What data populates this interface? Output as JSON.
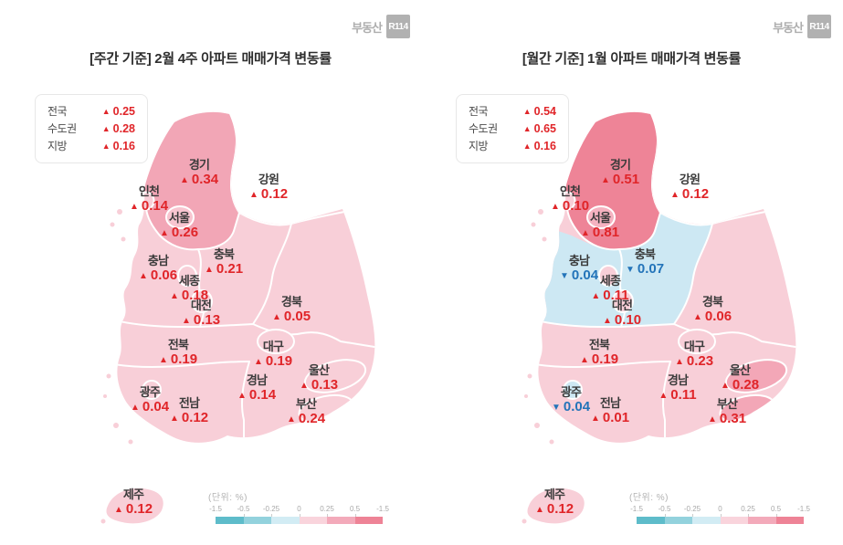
{
  "brand": {
    "name": "부동산",
    "badge": "R114"
  },
  "scale": {
    "unit": "(단위: %)",
    "ticks": [
      "-1.5",
      "-0.5",
      "-0.25",
      "0",
      "0.25",
      "0.5",
      "-1.5"
    ],
    "colors": [
      "#5EBCCA",
      "#93D2DD",
      "#D2ECF4",
      "#F9D4DC",
      "#F3AABA",
      "#EE8396"
    ]
  },
  "colors": {
    "up_red": "#E02529",
    "down_blue": "#2374B9",
    "base_pink": "#F8CFD8",
    "gyeonggi_weekly": "#F2A6B6",
    "gyeonggi_monthly": "#EE8497",
    "cool_blue_region": "#CDE8F3",
    "logo_gray": "#B1B1B1"
  },
  "chart_data": [
    {
      "type": "heatmap",
      "map": "south-korea-provinces-choropleth",
      "title": "[주간 기준] 2월 4주 아파트 매매가격 변동률",
      "unit": "%",
      "legend_position": "bottom-right",
      "scale_ticks": [
        "-1.5",
        "-0.5",
        "-0.25",
        "0",
        "0.25",
        "0.5",
        "-1.5"
      ],
      "summary": [
        {
          "label": "전국",
          "trend": "up",
          "marker": "▲",
          "value": "0.25"
        },
        {
          "label": "수도권",
          "trend": "up",
          "marker": "▲",
          "value": "0.28"
        },
        {
          "label": "지방",
          "trend": "up",
          "marker": "▲",
          "value": "0.16"
        }
      ],
      "regions": [
        {
          "name": "경기",
          "trend": "up",
          "marker": "▲",
          "value": "0.34"
        },
        {
          "name": "인천",
          "trend": "up",
          "marker": "▲",
          "value": "0.14"
        },
        {
          "name": "서울",
          "trend": "up",
          "marker": "▲",
          "value": "0.26"
        },
        {
          "name": "강원",
          "trend": "up",
          "marker": "▲",
          "value": "0.12"
        },
        {
          "name": "충남",
          "trend": "up",
          "marker": "▲",
          "value": "0.06"
        },
        {
          "name": "충북",
          "trend": "up",
          "marker": "▲",
          "value": "0.21"
        },
        {
          "name": "세종",
          "trend": "up",
          "marker": "▲",
          "value": "0.18"
        },
        {
          "name": "대전",
          "trend": "up",
          "marker": "▲",
          "value": "0.13"
        },
        {
          "name": "경북",
          "trend": "up",
          "marker": "▲",
          "value": "0.05"
        },
        {
          "name": "전북",
          "trend": "up",
          "marker": "▲",
          "value": "0.19"
        },
        {
          "name": "대구",
          "trend": "up",
          "marker": "▲",
          "value": "0.19"
        },
        {
          "name": "경남",
          "trend": "up",
          "marker": "▲",
          "value": "0.14"
        },
        {
          "name": "울산",
          "trend": "up",
          "marker": "▲",
          "value": "0.13"
        },
        {
          "name": "광주",
          "trend": "up",
          "marker": "▲",
          "value": "0.04"
        },
        {
          "name": "전남",
          "trend": "up",
          "marker": "▲",
          "value": "0.12"
        },
        {
          "name": "부산",
          "trend": "up",
          "marker": "▲",
          "value": "0.24"
        },
        {
          "name": "제주",
          "trend": "up",
          "marker": "▲",
          "value": "0.12"
        }
      ]
    },
    {
      "type": "heatmap",
      "map": "south-korea-provinces-choropleth",
      "title": "[월간 기준] 1월 아파트 매매가격 변동률",
      "unit": "%",
      "legend_position": "bottom-right",
      "scale_ticks": [
        "-1.5",
        "-0.5",
        "-0.25",
        "0",
        "0.25",
        "0.5",
        "-1.5"
      ],
      "summary": [
        {
          "label": "전국",
          "trend": "up",
          "marker": "▲",
          "value": "0.54"
        },
        {
          "label": "수도권",
          "trend": "up",
          "marker": "▲",
          "value": "0.65"
        },
        {
          "label": "지방",
          "trend": "up",
          "marker": "▲",
          "value": "0.16"
        }
      ],
      "regions": [
        {
          "name": "경기",
          "trend": "up",
          "marker": "▲",
          "value": "0.51"
        },
        {
          "name": "인천",
          "trend": "up",
          "marker": "▲",
          "value": "0.10"
        },
        {
          "name": "서울",
          "trend": "up",
          "marker": "▲",
          "value": "0.81"
        },
        {
          "name": "강원",
          "trend": "up",
          "marker": "▲",
          "value": "0.12"
        },
        {
          "name": "충남",
          "trend": "down",
          "marker": "▼",
          "value": "0.04"
        },
        {
          "name": "충북",
          "trend": "down",
          "marker": "▼",
          "value": "0.07"
        },
        {
          "name": "세종",
          "trend": "up",
          "marker": "▲",
          "value": "0.11"
        },
        {
          "name": "대전",
          "trend": "up",
          "marker": "▲",
          "value": "0.10"
        },
        {
          "name": "경북",
          "trend": "up",
          "marker": "▲",
          "value": "0.06"
        },
        {
          "name": "전북",
          "trend": "up",
          "marker": "▲",
          "value": "0.19"
        },
        {
          "name": "대구",
          "trend": "up",
          "marker": "▲",
          "value": "0.23"
        },
        {
          "name": "경남",
          "trend": "up",
          "marker": "▲",
          "value": "0.11"
        },
        {
          "name": "울산",
          "trend": "up",
          "marker": "▲",
          "value": "0.28"
        },
        {
          "name": "광주",
          "trend": "down",
          "marker": "▼",
          "value": "0.04"
        },
        {
          "name": "전남",
          "trend": "up",
          "marker": "▲",
          "value": "0.01"
        },
        {
          "name": "부산",
          "trend": "up",
          "marker": "▲",
          "value": "0.31"
        },
        {
          "name": "제주",
          "trend": "up",
          "marker": "▲",
          "value": "0.12"
        }
      ]
    }
  ]
}
